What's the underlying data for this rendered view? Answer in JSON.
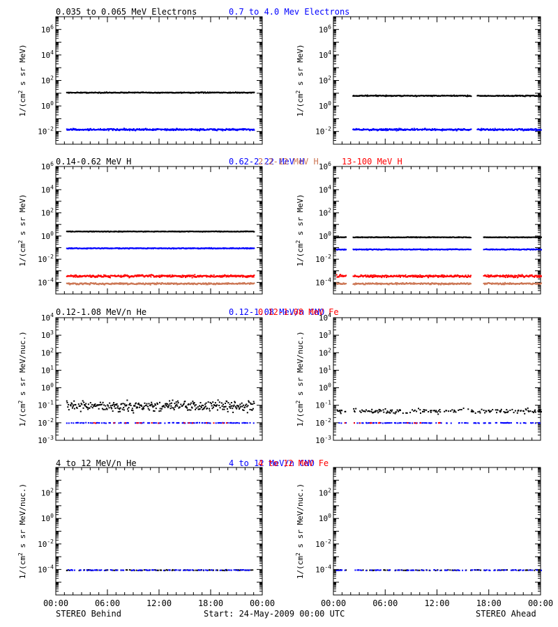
{
  "colors": {
    "black": "#000000",
    "blue": "#0000ff",
    "brown": "#cc7755",
    "red": "#ff0000",
    "frame": "#000000",
    "background": "#ffffff"
  },
  "footer": {
    "left_label": "STEREO Behind",
    "center_label": "Start: 24-May-2009 00:00 UTC",
    "right_label": "STEREO Ahead"
  },
  "x_tick_labels": [
    "00:00",
    "06:00",
    "12:00",
    "18:00",
    "00:00"
  ],
  "chart_data": [
    {
      "type": "scatter",
      "row": 1,
      "spacecraft": "STEREO Behind",
      "y_scale": "log",
      "ylim_exponents": [
        -3,
        7
      ],
      "y_tick_exponents": [
        -2,
        0,
        2,
        4,
        6
      ],
      "ylabel": "1/(cm2 s sr MeV)",
      "x_range_hours": [
        0,
        24
      ],
      "titles": [
        {
          "text": "0.035 to 0.065 MeV Electrons",
          "color": "black"
        },
        {
          "text": "0.7 to 4.0 Mev Electrons",
          "color": "blue"
        }
      ],
      "series": [
        {
          "name": "0.035 to 0.065 MeV Electrons",
          "color": "black",
          "approx_value": "1.2e1",
          "log10": 1.1,
          "scatter": 0.05,
          "start_h": 1.2,
          "end_h": 23.0,
          "gaps": []
        },
        {
          "name": "0.7 to 4.0 Mev Electrons",
          "color": "blue",
          "approx_value": "1.6e-2",
          "log10": -1.8,
          "scatter": 0.1,
          "start_h": 1.2,
          "end_h": 23.0,
          "gaps": []
        }
      ]
    },
    {
      "type": "scatter",
      "row": 1,
      "spacecraft": "STEREO Ahead",
      "y_scale": "log",
      "ylim_exponents": [
        -3,
        7
      ],
      "y_tick_exponents": [
        -2,
        0,
        2,
        4,
        6
      ],
      "ylabel": "1/(cm2 s sr MeV)",
      "x_range_hours": [
        0,
        24
      ],
      "titles": [],
      "series": [
        {
          "name": "0.035 to 0.065 MeV Electrons",
          "color": "black",
          "approx_value": "7e0",
          "log10": 0.85,
          "scatter": 0.06,
          "start_h": 2.2,
          "end_h": 24.0,
          "gaps": [
            [
              15.9,
              16.6
            ]
          ]
        },
        {
          "name": "0.7 to 4.0 Mev Electrons",
          "color": "blue",
          "approx_value": "1.5e-2",
          "log10": -1.8,
          "scatter": 0.1,
          "start_h": 2.2,
          "end_h": 24.0,
          "gaps": [
            [
              15.9,
              16.6
            ]
          ]
        }
      ]
    },
    {
      "type": "scatter",
      "row": 2,
      "spacecraft": "STEREO Behind",
      "y_scale": "log",
      "ylim_exponents": [
        -5,
        6
      ],
      "y_tick_exponents": [
        -4,
        -2,
        0,
        2,
        4,
        6
      ],
      "ylabel": "1/(cm2 s sr MeV)",
      "x_range_hours": [
        0,
        24
      ],
      "titles": [
        {
          "text": "0.14-0.62 MeV H",
          "color": "black"
        },
        {
          "text": "0.62-2.22 MeV H",
          "color": "blue"
        },
        {
          "text": "2.2-12 MeV H",
          "color": "brown"
        },
        {
          "text": "13-100 MeV H",
          "color": "red"
        }
      ],
      "series": [
        {
          "name": "0.14-0.62 MeV H",
          "color": "black",
          "approx_value": "3e0",
          "log10": 0.45,
          "scatter": 0.04,
          "start_h": 1.2,
          "end_h": 23.0,
          "gaps": []
        },
        {
          "name": "0.62-2.22 MeV H",
          "color": "blue",
          "approx_value": "1e-1",
          "log10": -1.0,
          "scatter": 0.05,
          "start_h": 1.2,
          "end_h": 23.0,
          "gaps": []
        },
        {
          "name": "13-100 MeV H",
          "color": "red",
          "approx_value": "4e-4",
          "log10": -3.4,
          "scatter": 0.15,
          "start_h": 1.2,
          "end_h": 23.0,
          "gaps": []
        },
        {
          "name": "2.2-12 MeV H",
          "color": "brown",
          "approx_value": "9e-5",
          "log10": -4.05,
          "scatter": 0.1,
          "start_h": 1.2,
          "end_h": 23.0,
          "gaps": []
        }
      ]
    },
    {
      "type": "scatter",
      "row": 2,
      "spacecraft": "STEREO Ahead",
      "y_scale": "log",
      "ylim_exponents": [
        -5,
        6
      ],
      "y_tick_exponents": [
        -4,
        -2,
        0,
        2,
        4,
        6
      ],
      "ylabel": "1/(cm2 s sr MeV)",
      "x_range_hours": [
        0,
        24
      ],
      "titles": [],
      "series": [
        {
          "name": "0.14-0.62 MeV H",
          "color": "black",
          "approx_value": "9e-1",
          "log10": -0.05,
          "scatter": 0.04,
          "start_h": 0.3,
          "end_h": 24.0,
          "gaps": [
            [
              1.4,
              2.2
            ],
            [
              15.9,
              17.3
            ]
          ]
        },
        {
          "name": "0.62-2.22 MeV H",
          "color": "blue",
          "approx_value": "8e-2",
          "log10": -1.1,
          "scatter": 0.05,
          "start_h": 0.3,
          "end_h": 24.0,
          "gaps": [
            [
              1.4,
              2.2
            ],
            [
              15.9,
              17.3
            ]
          ]
        },
        {
          "name": "13-100 MeV H",
          "color": "red",
          "approx_value": "4e-4",
          "log10": -3.4,
          "scatter": 0.15,
          "start_h": 0.3,
          "end_h": 24.0,
          "gaps": [
            [
              1.4,
              2.2
            ],
            [
              15.9,
              17.3
            ]
          ]
        },
        {
          "name": "2.2-12 MeV H",
          "color": "brown",
          "approx_value": "9e-5",
          "log10": -4.05,
          "scatter": 0.1,
          "start_h": 0.3,
          "end_h": 24.0,
          "gaps": [
            [
              1.4,
              2.2
            ],
            [
              15.9,
              17.3
            ]
          ]
        }
      ]
    },
    {
      "type": "scatter",
      "row": 3,
      "spacecraft": "STEREO Behind",
      "y_scale": "log",
      "ylim_exponents": [
        -3,
        4
      ],
      "y_tick_exponents": [
        -3,
        -2,
        -1,
        0,
        1,
        2,
        3,
        4
      ],
      "ylabel": "1/(cm2 s sr MeV/nuc.)",
      "x_range_hours": [
        0,
        24
      ],
      "titles": [
        {
          "text": "0.12-1.08 MeV/n He",
          "color": "black"
        },
        {
          "text": "0.12-1.08 MeV/n CNO",
          "color": "blue"
        },
        {
          "text": "0.12-1.08 MeV Fe",
          "color": "red"
        }
      ],
      "series": [
        {
          "name": "0.12-1.08 MeV/n He",
          "color": "black",
          "approx_value": "0.03-0.3",
          "log10": -1.0,
          "scatter": 0.45,
          "start_h": 1.2,
          "end_h": 23.0,
          "gaps": [],
          "density": 0.9
        },
        {
          "name": "0.12-1.08 MeV/n CNO",
          "color": "blue",
          "approx_value": "1.1e-2",
          "log10": -1.97,
          "scatter": 0.02,
          "start_h": 1.2,
          "end_h": 23.0,
          "gaps": [],
          "density": 0.35
        },
        {
          "name": "0.12-1.08 MeV Fe",
          "color": "red",
          "approx_value": "1.1e-2",
          "log10": -1.97,
          "scatter": 0.02,
          "start_h": 4.0,
          "end_h": 20.0,
          "gaps": [],
          "density": 0.08
        }
      ]
    },
    {
      "type": "scatter",
      "row": 3,
      "spacecraft": "STEREO Ahead",
      "y_scale": "log",
      "ylim_exponents": [
        -3,
        4
      ],
      "y_tick_exponents": [
        -3,
        -2,
        -1,
        0,
        1,
        2,
        3,
        4
      ],
      "ylabel": "1/(cm2 s sr MeV/nuc.)",
      "x_range_hours": [
        0,
        24
      ],
      "titles": [],
      "series": [
        {
          "name": "0.12-1.08 MeV/n He",
          "color": "black",
          "approx_value": "5e-2",
          "log10": -1.3,
          "scatter": 0.2,
          "start_h": 0.3,
          "end_h": 24.0,
          "gaps": [
            [
              1.4,
              2.2
            ]
          ],
          "density": 0.45
        },
        {
          "name": "0.12-1.08 MeV/n CNO",
          "color": "blue",
          "approx_value": "1.1e-2",
          "log10": -1.97,
          "scatter": 0.02,
          "start_h": 0.3,
          "end_h": 24.0,
          "gaps": [
            [
              1.4,
              2.2
            ]
          ],
          "density": 0.3
        },
        {
          "name": "0.12-1.08 MeV Fe",
          "color": "red",
          "approx_value": "1.1e-2",
          "log10": -1.97,
          "scatter": 0.02,
          "start_h": 0.3,
          "end_h": 13.0,
          "gaps": [
            [
              1.4,
              2.2
            ]
          ],
          "density": 0.06
        }
      ]
    },
    {
      "type": "scatter",
      "row": 4,
      "spacecraft": "STEREO Behind",
      "y_scale": "log",
      "ylim_exponents": [
        -6,
        4
      ],
      "y_tick_exponents": [
        -4,
        -2,
        0,
        2
      ],
      "ylabel": "1/(cm2 s sr MeV/nuc.)",
      "x_range_hours": [
        0,
        24
      ],
      "titles": [
        {
          "text": "4 to 12 MeV/n He",
          "color": "black"
        },
        {
          "text": "4 to 12 MeV/n CNO",
          "color": "blue"
        },
        {
          "text": "4 to 12 MeV Fe",
          "color": "red"
        }
      ],
      "series": [
        {
          "name": "4 to 12 MeV/n He",
          "color": "black",
          "approx_value": "1e-4",
          "log10": -4.0,
          "scatter": 0.04,
          "start_h": 1.2,
          "end_h": 23.0,
          "gaps": [],
          "density": 0.3
        },
        {
          "name": "4 to 12 MeV/n CNO",
          "color": "blue",
          "approx_value": "1e-4",
          "log10": -4.0,
          "scatter": 0.04,
          "start_h": 1.2,
          "end_h": 23.0,
          "gaps": [],
          "density": 0.3
        }
      ]
    },
    {
      "type": "scatter",
      "row": 4,
      "spacecraft": "STEREO Ahead",
      "y_scale": "log",
      "ylim_exponents": [
        -6,
        4
      ],
      "y_tick_exponents": [
        -4,
        -2,
        0,
        2
      ],
      "ylabel": "1/(cm2 s sr MeV/nuc.)",
      "x_range_hours": [
        0,
        24
      ],
      "titles": [],
      "series": [
        {
          "name": "4 to 12 MeV/n He",
          "color": "black",
          "approx_value": "1e-4",
          "log10": -4.0,
          "scatter": 0.04,
          "start_h": 0.3,
          "end_h": 24.0,
          "gaps": [
            [
              1.4,
              2.2
            ]
          ],
          "density": 0.2
        },
        {
          "name": "4 to 12 MeV/n CNO",
          "color": "blue",
          "approx_value": "1e-4",
          "log10": -4.0,
          "scatter": 0.04,
          "start_h": 0.3,
          "end_h": 24.0,
          "gaps": [
            [
              1.4,
              2.2
            ]
          ],
          "density": 0.25
        }
      ]
    }
  ]
}
